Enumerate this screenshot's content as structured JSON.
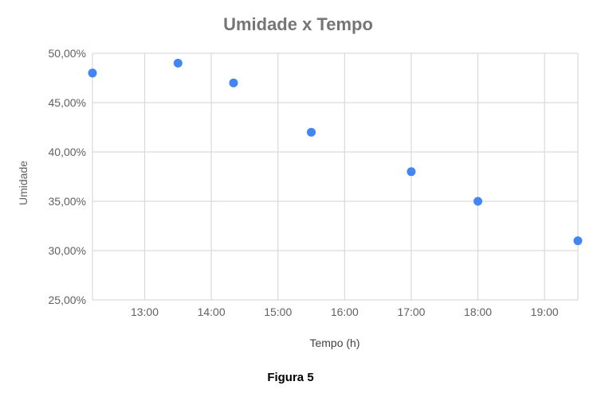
{
  "chart_data": {
    "type": "scatter",
    "title": "Umidade x Tempo",
    "xlabel": "Tempo (h)",
    "ylabel": "Umidade",
    "x_unit": "hours (time of day)",
    "xlim": [
      "12:13",
      "19:30"
    ],
    "ylim": [
      25,
      50
    ],
    "x_ticks": [
      "13:00",
      "14:00",
      "15:00",
      "16:00",
      "17:00",
      "18:00",
      "19:00"
    ],
    "y_ticks": [
      "25,00%",
      "30,00%",
      "35,00%",
      "40,00%",
      "45,00%",
      "50,00%"
    ],
    "points": [
      {
        "x": "12:13",
        "y": 48
      },
      {
        "x": "13:30",
        "y": 49
      },
      {
        "x": "14:20",
        "y": 47
      },
      {
        "x": "15:30",
        "y": 42
      },
      {
        "x": "17:00",
        "y": 38
      },
      {
        "x": "18:00",
        "y": 35
      },
      {
        "x": "19:30",
        "y": 31
      }
    ],
    "grid": true,
    "marker_color": "#4285f4"
  },
  "caption": "Figura 5"
}
